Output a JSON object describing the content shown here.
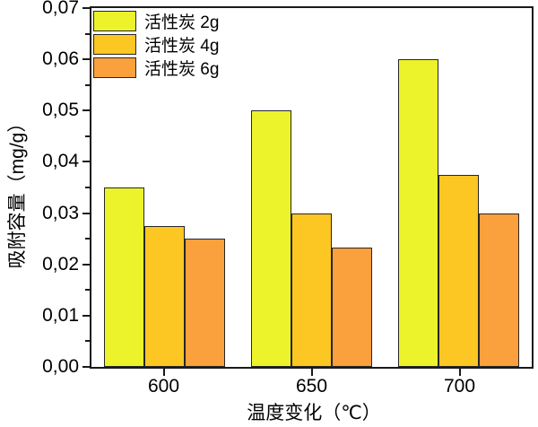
{
  "chart_data": {
    "type": "bar",
    "title": "",
    "xlabel": "温度变化（℃）",
    "ylabel": "吸附容量（mg/g）",
    "categories": [
      "600",
      "650",
      "700"
    ],
    "series": [
      {
        "name": "活性炭 2g",
        "color": "#EDF32B",
        "values": [
          0.035,
          0.05,
          0.06
        ]
      },
      {
        "name": "活性炭 4g",
        "color": "#FCC623",
        "values": [
          0.0275,
          0.03,
          0.0375
        ]
      },
      {
        "name": "活性炭 6g",
        "color": "#FAA03C",
        "values": [
          0.025,
          0.0233,
          0.03
        ]
      }
    ],
    "ylim": [
      0,
      0.07
    ],
    "y_major_step": 0.01,
    "y_minor_step": 0.005,
    "y_tick_labels": [
      "0,00",
      "0,01",
      "0,02",
      "0,03",
      "0,04",
      "0,05",
      "0,06",
      "0,07"
    ],
    "decimal_separator": ",",
    "grid": false,
    "legend_position": "top-left",
    "bar_border_color": "#262626",
    "axis_color": "#1a1a1a",
    "background_color": "#ffffff"
  }
}
